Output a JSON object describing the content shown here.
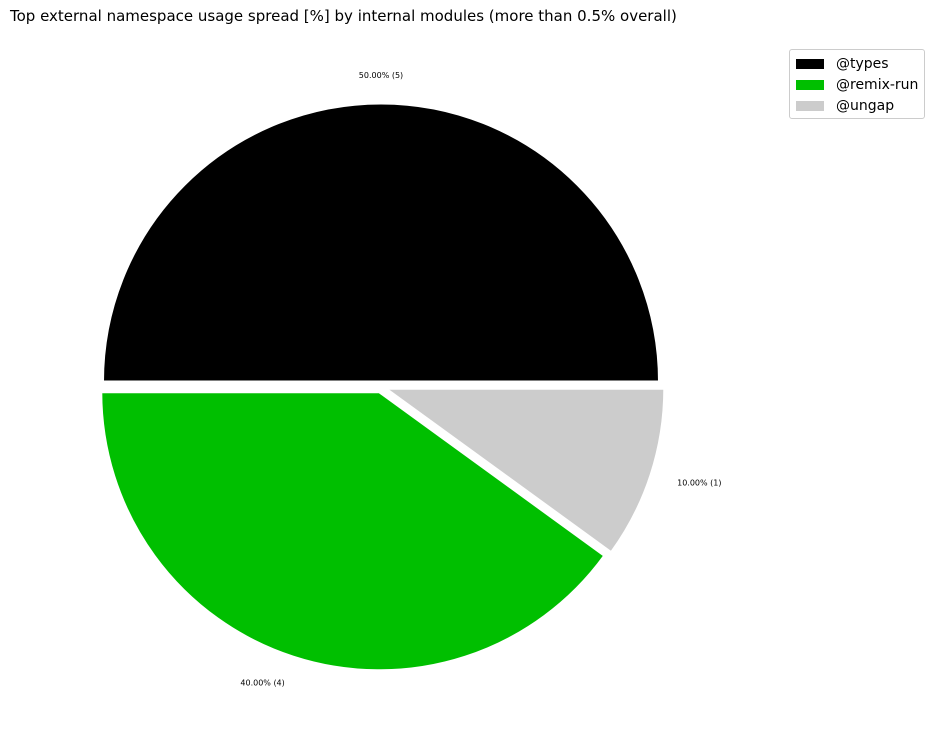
{
  "chart_data": {
    "type": "pie",
    "title": "Top external namespace usage spread [%] by internal modules (more than 0.5% overall)",
    "slices": [
      {
        "name": "@types",
        "value": 50.0,
        "count": 5,
        "label": "50.00% (5)",
        "color": "#000000"
      },
      {
        "name": "@remix-run",
        "value": 40.0,
        "count": 4,
        "label": "40.00% (4)",
        "color": "#00bf00"
      },
      {
        "name": "@ungap",
        "value": 10.0,
        "count": 1,
        "label": "10.00% (1)",
        "color": "#cccccc"
      }
    ],
    "start_angle_deg": 0,
    "direction": "counterclockwise",
    "legend_position": "upper-right"
  }
}
